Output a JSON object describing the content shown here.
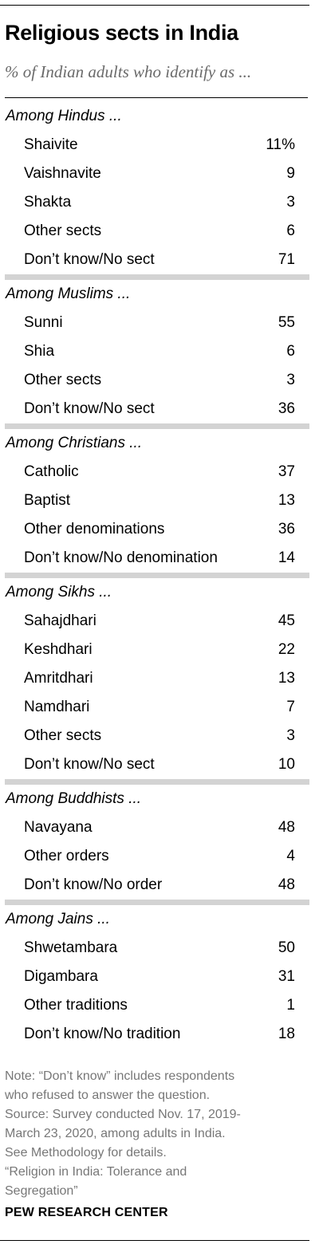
{
  "title": "Religious sects in India",
  "subtitle": "% of Indian adults who identify as ...",
  "groups": [
    {
      "heading": "Among Hindus ...",
      "rows": [
        {
          "label": "Shaivite",
          "value": "11%"
        },
        {
          "label": "Vaishnavite",
          "value": "9"
        },
        {
          "label": "Shakta",
          "value": "3"
        },
        {
          "label": "Other sects",
          "value": "6"
        },
        {
          "label": "Don’t know/No sect",
          "value": "71"
        }
      ]
    },
    {
      "heading": "Among Muslims ...",
      "rows": [
        {
          "label": "Sunni",
          "value": "55"
        },
        {
          "label": "Shia",
          "value": "6"
        },
        {
          "label": "Other sects",
          "value": "3"
        },
        {
          "label": "Don’t know/No sect",
          "value": "36"
        }
      ]
    },
    {
      "heading": "Among Christians ...",
      "rows": [
        {
          "label": "Catholic",
          "value": "37"
        },
        {
          "label": "Baptist",
          "value": "13"
        },
        {
          "label": "Other denominations",
          "value": "36"
        },
        {
          "label": "Don’t know/No denomination",
          "value": "14"
        }
      ]
    },
    {
      "heading": "Among Sikhs ...",
      "rows": [
        {
          "label": "Sahajdhari",
          "value": "45"
        },
        {
          "label": "Keshdhari",
          "value": "22"
        },
        {
          "label": "Amritdhari",
          "value": "13"
        },
        {
          "label": "Namdhari",
          "value": "7"
        },
        {
          "label": "Other sects",
          "value": "3"
        },
        {
          "label": "Don’t know/No sect",
          "value": "10"
        }
      ]
    },
    {
      "heading": "Among Buddhists ...",
      "rows": [
        {
          "label": "Navayana",
          "value": "48"
        },
        {
          "label": "Other orders",
          "value": "4"
        },
        {
          "label": "Don’t know/No order",
          "value": "48"
        }
      ]
    },
    {
      "heading": "Among Jains ...",
      "rows": [
        {
          "label": "Shwetambara",
          "value": "50"
        },
        {
          "label": "Digambara",
          "value": "31"
        },
        {
          "label": "Other traditions",
          "value": "1"
        },
        {
          "label": "Don’t know/No tradition",
          "value": "18"
        }
      ]
    }
  ],
  "note_lines": [
    "Note: “Don’t know” includes respondents",
    "who refused to answer the question.",
    "Source: Survey conducted Nov. 17, 2019-",
    "March 23, 2020, among adults in India.",
    "See Methodology for details.",
    "“Religion in India: Tolerance and",
    "Segregation”"
  ],
  "brand": "PEW RESEARCH CENTER",
  "chart_data": {
    "type": "table",
    "title": "Religious sects in India",
    "subtitle": "% of Indian adults who identify as ...",
    "unit": "%",
    "sections": [
      {
        "name": "Among Hindus ...",
        "categories": [
          "Shaivite",
          "Vaishnavite",
          "Shakta",
          "Other sects",
          "Don’t know/No sect"
        ],
        "values": [
          11,
          9,
          3,
          6,
          71
        ]
      },
      {
        "name": "Among Muslims ...",
        "categories": [
          "Sunni",
          "Shia",
          "Other sects",
          "Don’t know/No sect"
        ],
        "values": [
          55,
          6,
          3,
          36
        ]
      },
      {
        "name": "Among Christians ...",
        "categories": [
          "Catholic",
          "Baptist",
          "Other denominations",
          "Don’t know/No denomination"
        ],
        "values": [
          37,
          13,
          36,
          14
        ]
      },
      {
        "name": "Among Sikhs ...",
        "categories": [
          "Sahajdhari",
          "Keshdhari",
          "Amritdhari",
          "Namdhari",
          "Other sects",
          "Don’t know/No sect"
        ],
        "values": [
          45,
          22,
          13,
          7,
          3,
          10
        ]
      },
      {
        "name": "Among Buddhists ...",
        "categories": [
          "Navayana",
          "Other orders",
          "Don’t know/No order"
        ],
        "values": [
          48,
          4,
          48
        ]
      },
      {
        "name": "Among Jains ...",
        "categories": [
          "Shwetambara",
          "Digambara",
          "Other traditions",
          "Don’t know/No tradition"
        ],
        "values": [
          50,
          31,
          1,
          18
        ]
      }
    ]
  }
}
